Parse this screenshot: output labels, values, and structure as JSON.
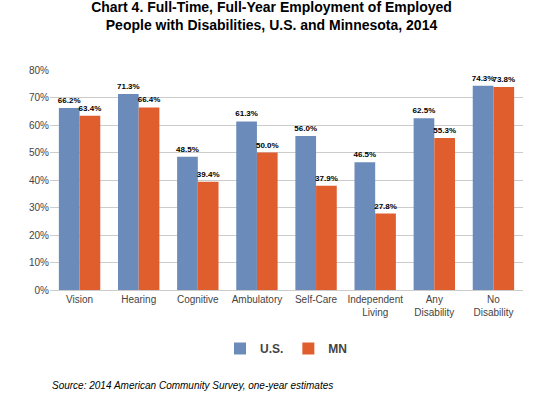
{
  "chart_data": {
    "type": "bar",
    "title": "Chart 4. Full-Time, Full-Year Employment of Employed\nPeople with Disabilities, U.S. and Minnesota, 2014",
    "categories": [
      "Vision",
      "Hearing",
      "Cognitive",
      "Ambulatory",
      "Self-Care",
      "Independent\nLiving",
      "Any\nDisability",
      "No\nDisability"
    ],
    "series": [
      {
        "name": "U.S.",
        "color": "#6b8cba",
        "values": [
          66.2,
          71.3,
          48.5,
          61.3,
          56.0,
          46.5,
          62.5,
          74.3
        ],
        "value_labels": [
          "66.2%",
          "71.3%",
          "48.5%",
          "61.3%",
          "56.0%",
          "46.5%",
          "62.5%",
          "74.3%"
        ]
      },
      {
        "name": "MN",
        "color": "#e05e2e",
        "values": [
          63.4,
          66.4,
          39.4,
          50.0,
          37.9,
          27.8,
          55.3,
          73.8
        ],
        "value_labels": [
          "63.4%",
          "66.4%",
          "39.4%",
          "50.0%",
          "37.9%",
          "27.8%",
          "55.3%",
          "73.8%"
        ]
      }
    ],
    "ylim": [
      0,
      80
    ],
    "yticks": [
      {
        "value": 0,
        "label": "0%"
      },
      {
        "value": 10,
        "label": "10%"
      },
      {
        "value": 20,
        "label": "20%"
      },
      {
        "value": 30,
        "label": "30%"
      },
      {
        "value": 40,
        "label": "40%"
      },
      {
        "value": 50,
        "label": "50%"
      },
      {
        "value": 60,
        "label": "60%"
      },
      {
        "value": 70,
        "label": "70%"
      },
      {
        "value": 80,
        "label": "80%"
      }
    ],
    "grid": true,
    "legend": "bottom",
    "data_labels": true,
    "annotations": [
      "Source: 2014 American Community Survey, one-year estimates"
    ]
  }
}
